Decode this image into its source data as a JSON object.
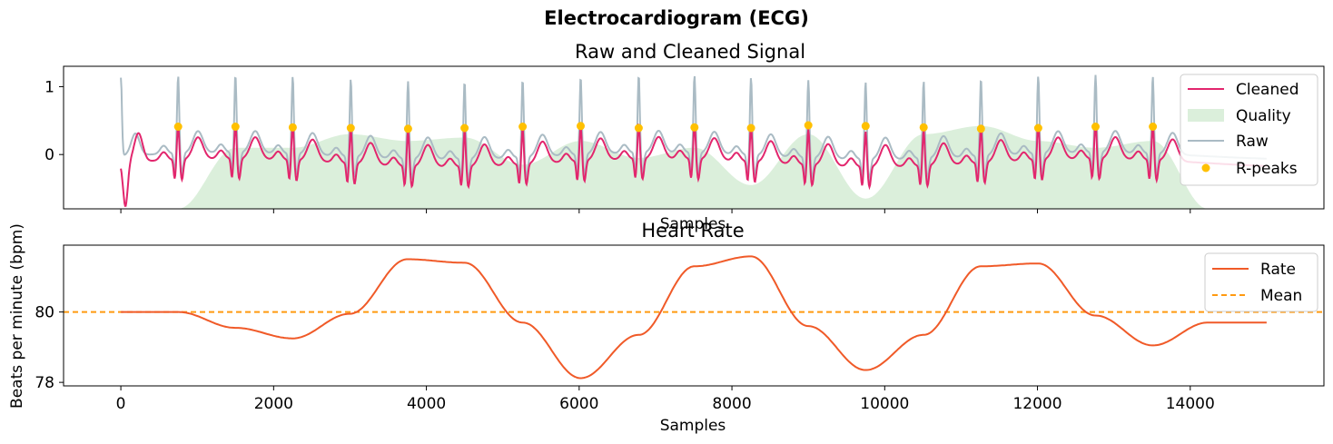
{
  "figure": {
    "title": "Electrocardiogram (ECG)"
  },
  "chart_data": [
    {
      "type": "line",
      "title": "Raw and Cleaned Signal",
      "xlabel": "Samples",
      "ylabel": "",
      "xlim": [
        -750,
        15750
      ],
      "ylim": [
        -0.8,
        1.3
      ],
      "x_ticks": [
        0,
        2000,
        4000,
        6000,
        8000,
        10000,
        12000,
        14000
      ],
      "x_tick_labels_shown": false,
      "y_ticks": [
        0,
        1
      ],
      "y_tick_labels": [
        "0",
        "1"
      ],
      "grid": false,
      "legend_position": "top-right",
      "legend": [
        "Cleaned",
        "Quality",
        "Raw",
        "R-peaks"
      ],
      "colors": {
        "cleaned": "#e2266d",
        "quality": "#d7edd7",
        "raw": "#aabbc4",
        "rpeaks": "#ffc000"
      },
      "rpeaks": {
        "x": [
          750,
          1500,
          2250,
          3010,
          3760,
          4500,
          5260,
          6020,
          6780,
          7510,
          8250,
          9000,
          9750,
          10510,
          11260,
          12010,
          12760,
          13510
        ],
        "y": [
          0.41,
          0.41,
          0.4,
          0.39,
          0.38,
          0.39,
          0.41,
          0.42,
          0.39,
          0.4,
          0.39,
          0.43,
          0.42,
          0.4,
          0.38,
          0.39,
          0.41,
          0.41
        ]
      },
      "quality": {
        "baseline": -0.8,
        "x": [
          750,
          1500,
          2250,
          3000,
          3750,
          4500,
          5260,
          6020,
          6780,
          7510,
          8250,
          9000,
          9750,
          10510,
          11260,
          12010,
          12760,
          13510,
          14230
        ],
        "y": [
          -0.8,
          0.1,
          0.1,
          0.3,
          0.2,
          0.25,
          -0.15,
          0.2,
          -0.05,
          0.1,
          -0.45,
          0.3,
          -0.65,
          0.3,
          0.42,
          0.2,
          0.1,
          0.2,
          -0.8
        ]
      }
    },
    {
      "type": "line",
      "title": "Heart Rate",
      "xlabel": "Samples",
      "ylabel": "Beats per minute (bpm)",
      "xlim": [
        -750,
        15750
      ],
      "ylim": [
        77.9,
        81.9
      ],
      "x_ticks": [
        0,
        2000,
        4000,
        6000,
        8000,
        10000,
        12000,
        14000
      ],
      "x_tick_labels": [
        "0",
        "2000",
        "4000",
        "6000",
        "8000",
        "10000",
        "12000",
        "14000"
      ],
      "y_ticks": [
        78,
        80
      ],
      "y_tick_labels": [
        "78",
        "80"
      ],
      "grid": false,
      "legend_position": "top-right",
      "series": [
        {
          "name": "Rate",
          "color": "#f05a28",
          "x": [
            0,
            750,
            1500,
            2250,
            3000,
            3750,
            4500,
            5260,
            6020,
            6780,
            7510,
            8250,
            9000,
            9750,
            10510,
            11260,
            12010,
            12760,
            13510,
            14230,
            15000
          ],
          "y": [
            80.0,
            80.0,
            79.55,
            79.25,
            79.95,
            81.5,
            81.4,
            79.7,
            78.12,
            79.35,
            81.3,
            81.58,
            79.6,
            78.35,
            79.35,
            81.3,
            81.38,
            79.9,
            79.05,
            79.7,
            79.7
          ]
        }
      ],
      "mean": {
        "name": "Mean",
        "value": 80.0,
        "color": "#ff9a10"
      }
    }
  ]
}
